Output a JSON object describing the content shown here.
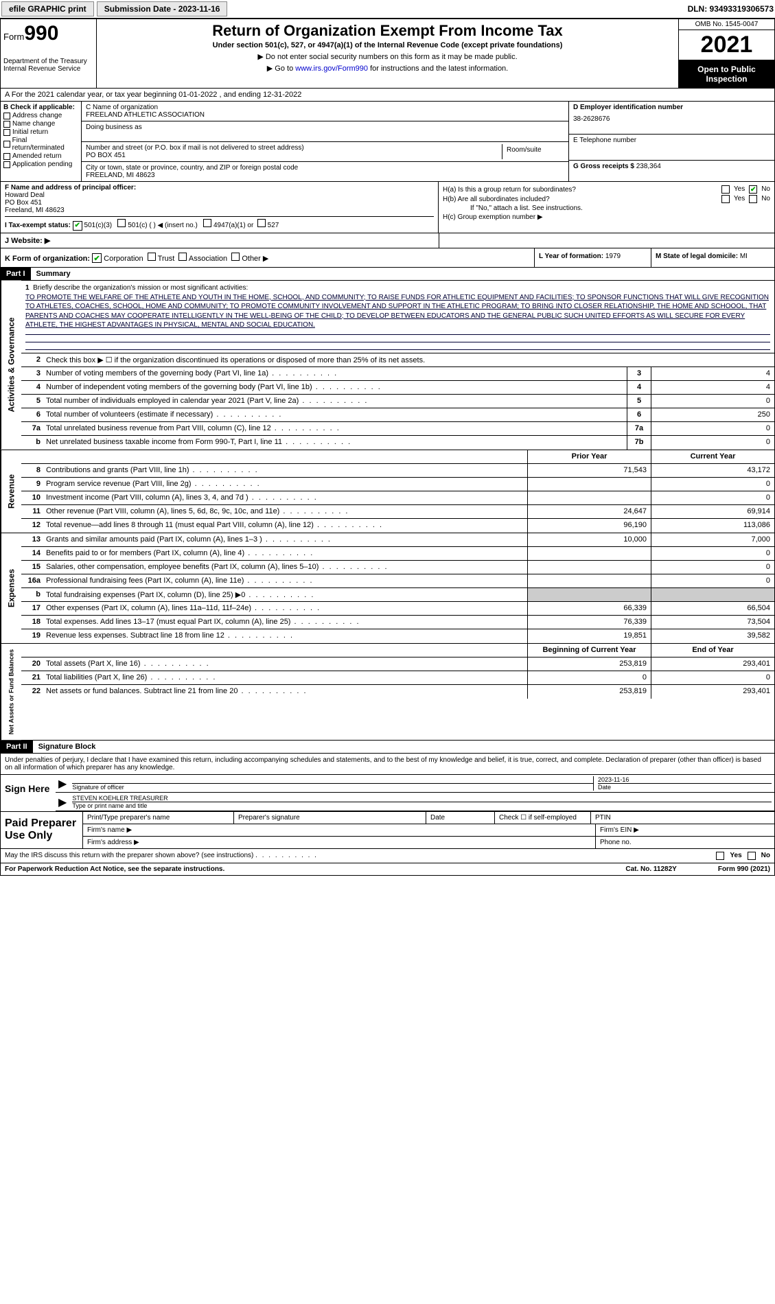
{
  "topbar": {
    "efile": "efile GRAPHIC print",
    "submission_label": "Submission Date - 2023-11-16",
    "dln": "DLN: 93493319306573"
  },
  "header": {
    "form_label": "Form",
    "form_num": "990",
    "dept": "Department of the Treasury\nInternal Revenue Service",
    "title": "Return of Organization Exempt From Income Tax",
    "subtitle": "Under section 501(c), 527, or 4947(a)(1) of the Internal Revenue Code (except private foundations)",
    "note1": "▶ Do not enter social security numbers on this form as it may be made public.",
    "note2_pre": "▶ Go to ",
    "note2_link": "www.irs.gov/Form990",
    "note2_post": " for instructions and the latest information.",
    "omb": "OMB No. 1545-0047",
    "year": "2021",
    "inspect": "Open to Public Inspection"
  },
  "row_a": "A For the 2021 calendar year, or tax year beginning 01-01-2022   , and ending 12-31-2022",
  "col_b": {
    "title": "B Check if applicable:",
    "items": [
      "Address change",
      "Name change",
      "Initial return",
      "Final return/terminated",
      "Amended return",
      "Application pending"
    ]
  },
  "col_c": {
    "label_name": "C Name of organization",
    "name": "FREELAND ATHLETIC ASSOCIATION",
    "dba_label": "Doing business as",
    "addr_label": "Number and street (or P.O. box if mail is not delivered to street address)",
    "addr": "PO BOX 451",
    "suite_label": "Room/suite",
    "city_label": "City or town, state or province, country, and ZIP or foreign postal code",
    "city": "FREELAND, MI  48623"
  },
  "col_d": {
    "label": "D Employer identification number",
    "val": "38-2628676"
  },
  "col_e": {
    "label": "E Telephone number",
    "val": ""
  },
  "col_g": {
    "label": "G Gross receipts $",
    "val": "238,364"
  },
  "col_f": {
    "label": "F  Name and address of principal officer:",
    "name": "Howard Deal",
    "addr1": "PO Box 451",
    "addr2": "Freeland, MI  48623"
  },
  "col_h": {
    "a_label": "H(a)  Is this a group return for subordinates?",
    "b_label": "H(b)  Are all subordinates included?",
    "b_note": "If \"No,\" attach a list. See instructions.",
    "c_label": "H(c)  Group exemption number ▶",
    "yes": "Yes",
    "no": "No"
  },
  "row_i": {
    "label": "I  Tax-exempt status:",
    "opts": [
      "501(c)(3)",
      "501(c) (  ) ◀ (insert no.)",
      "4947(a)(1) or",
      "527"
    ]
  },
  "row_j": {
    "label": "J  Website: ▶"
  },
  "row_k": {
    "label": "K Form of organization:",
    "opts": [
      "Corporation",
      "Trust",
      "Association",
      "Other ▶"
    ]
  },
  "row_l": {
    "label": "L Year of formation:",
    "val": "1979"
  },
  "row_m": {
    "label": "M State of legal domicile:",
    "val": "MI"
  },
  "part1": {
    "hdr": "Part I",
    "title": "Summary",
    "vlabel_ag": "Activities & Governance",
    "vlabel_rev": "Revenue",
    "vlabel_exp": "Expenses",
    "vlabel_na": "Net Assets or Fund Balances",
    "line1_label": "Briefly describe the organization's mission or most significant activities:",
    "mission": "TO PROMOTE THE WELFARE OF THE ATHLETE AND YOUTH IN THE HOME, SCHOOL, AND COMMUNITY; TO RAISE FUNDS FOR ATHLETIC EQUIPMENT AND FACILITIES; TO SPONSOR FUNCTIONS THAT WILL GIVE RECOGNITION TO ATHLETES, COACHES, SCHOOL, HOME AND COMMUNITY; TO PROMOTE COMMUNITY INVOLVEMENT AND SUPPORT IN THE ATHLETIC PROGRAM; TO BRING INTO CLOSER RELATIONSHIP, THE HOME AND SCHOOOL, THAT PARENTS AND COACHES MAY COOPERATE INTELLIGENTLY IN THE WELL-BEING OF THE CHILD; TO DEVELOP BETWEEN EDUCATORS AND THE GENERAL PUBLIC SUCH UNITED EFFORTS AS WILL SECURE FOR EVERY ATHLETE, THE HIGHEST ADVANTAGES IN PHYSICAL, MENTAL AND SOCIAL EDUCATION.",
    "line2": "Check this box ▶ ☐  if the organization discontinued its operations or disposed of more than 25% of its net assets.",
    "lines_ag": [
      {
        "n": "3",
        "t": "Number of voting members of the governing body (Part VI, line 1a)",
        "box": "3",
        "v": "4"
      },
      {
        "n": "4",
        "t": "Number of independent voting members of the governing body (Part VI, line 1b)",
        "box": "4",
        "v": "4"
      },
      {
        "n": "5",
        "t": "Total number of individuals employed in calendar year 2021 (Part V, line 2a)",
        "box": "5",
        "v": "0"
      },
      {
        "n": "6",
        "t": "Total number of volunteers (estimate if necessary)",
        "box": "6",
        "v": "250"
      },
      {
        "n": "7a",
        "t": "Total unrelated business revenue from Part VIII, column (C), line 12",
        "box": "7a",
        "v": "0"
      },
      {
        "n": "b",
        "t": "Net unrelated business taxable income from Form 990-T, Part I, line 11",
        "box": "7b",
        "v": "0"
      }
    ],
    "col_py": "Prior Year",
    "col_cy": "Current Year",
    "lines_rev": [
      {
        "n": "8",
        "t": "Contributions and grants (Part VIII, line 1h)",
        "py": "71,543",
        "cy": "43,172"
      },
      {
        "n": "9",
        "t": "Program service revenue (Part VIII, line 2g)",
        "py": "",
        "cy": "0"
      },
      {
        "n": "10",
        "t": "Investment income (Part VIII, column (A), lines 3, 4, and 7d )",
        "py": "",
        "cy": "0"
      },
      {
        "n": "11",
        "t": "Other revenue (Part VIII, column (A), lines 5, 6d, 8c, 9c, 10c, and 11e)",
        "py": "24,647",
        "cy": "69,914"
      },
      {
        "n": "12",
        "t": "Total revenue—add lines 8 through 11 (must equal Part VIII, column (A), line 12)",
        "py": "96,190",
        "cy": "113,086"
      }
    ],
    "lines_exp": [
      {
        "n": "13",
        "t": "Grants and similar amounts paid (Part IX, column (A), lines 1–3 )",
        "py": "10,000",
        "cy": "7,000"
      },
      {
        "n": "14",
        "t": "Benefits paid to or for members (Part IX, column (A), line 4)",
        "py": "",
        "cy": "0"
      },
      {
        "n": "15",
        "t": "Salaries, other compensation, employee benefits (Part IX, column (A), lines 5–10)",
        "py": "",
        "cy": "0"
      },
      {
        "n": "16a",
        "t": "Professional fundraising fees (Part IX, column (A), line 11e)",
        "py": "",
        "cy": "0"
      },
      {
        "n": "b",
        "t": "Total fundraising expenses (Part IX, column (D), line 25) ▶0",
        "py": "GRAY",
        "cy": "GRAY"
      },
      {
        "n": "17",
        "t": "Other expenses (Part IX, column (A), lines 11a–11d, 11f–24e)",
        "py": "66,339",
        "cy": "66,504"
      },
      {
        "n": "18",
        "t": "Total expenses. Add lines 13–17 (must equal Part IX, column (A), line 25)",
        "py": "76,339",
        "cy": "73,504"
      },
      {
        "n": "19",
        "t": "Revenue less expenses. Subtract line 18 from line 12",
        "py": "19,851",
        "cy": "39,582"
      }
    ],
    "col_by": "Beginning of Current Year",
    "col_ey": "End of Year",
    "lines_na": [
      {
        "n": "20",
        "t": "Total assets (Part X, line 16)",
        "py": "253,819",
        "cy": "293,401"
      },
      {
        "n": "21",
        "t": "Total liabilities (Part X, line 26)",
        "py": "0",
        "cy": "0"
      },
      {
        "n": "22",
        "t": "Net assets or fund balances. Subtract line 21 from line 20",
        "py": "253,819",
        "cy": "293,401"
      }
    ]
  },
  "part2": {
    "hdr": "Part II",
    "title": "Signature Block",
    "decl": "Under penalties of perjury, I declare that I have examined this return, including accompanying schedules and statements, and to the best of my knowledge and belief, it is true, correct, and complete. Declaration of preparer (other than officer) is based on all information of which preparer has any knowledge.",
    "sign_here": "Sign Here",
    "sig_officer": "Signature of officer",
    "date_label": "Date",
    "date": "2023-11-16",
    "officer": "STEVEN KOEHLER  TREASURER",
    "type_name": "Type or print name and title",
    "paid_prep": "Paid Preparer Use Only",
    "prep_name": "Print/Type preparer's name",
    "prep_sig": "Preparer's signature",
    "prep_date": "Date",
    "self_emp": "Check ☐ if self-employed",
    "ptin": "PTIN",
    "firm_name": "Firm's name   ▶",
    "firm_ein": "Firm's EIN ▶",
    "firm_addr": "Firm's address ▶",
    "phone": "Phone no.",
    "discuss": "May the IRS discuss this return with the preparer shown above? (see instructions)",
    "yes": "Yes",
    "no": "No"
  },
  "footer": {
    "pra": "For Paperwork Reduction Act Notice, see the separate instructions.",
    "cat": "Cat. No. 11282Y",
    "form": "Form 990 (2021)"
  }
}
